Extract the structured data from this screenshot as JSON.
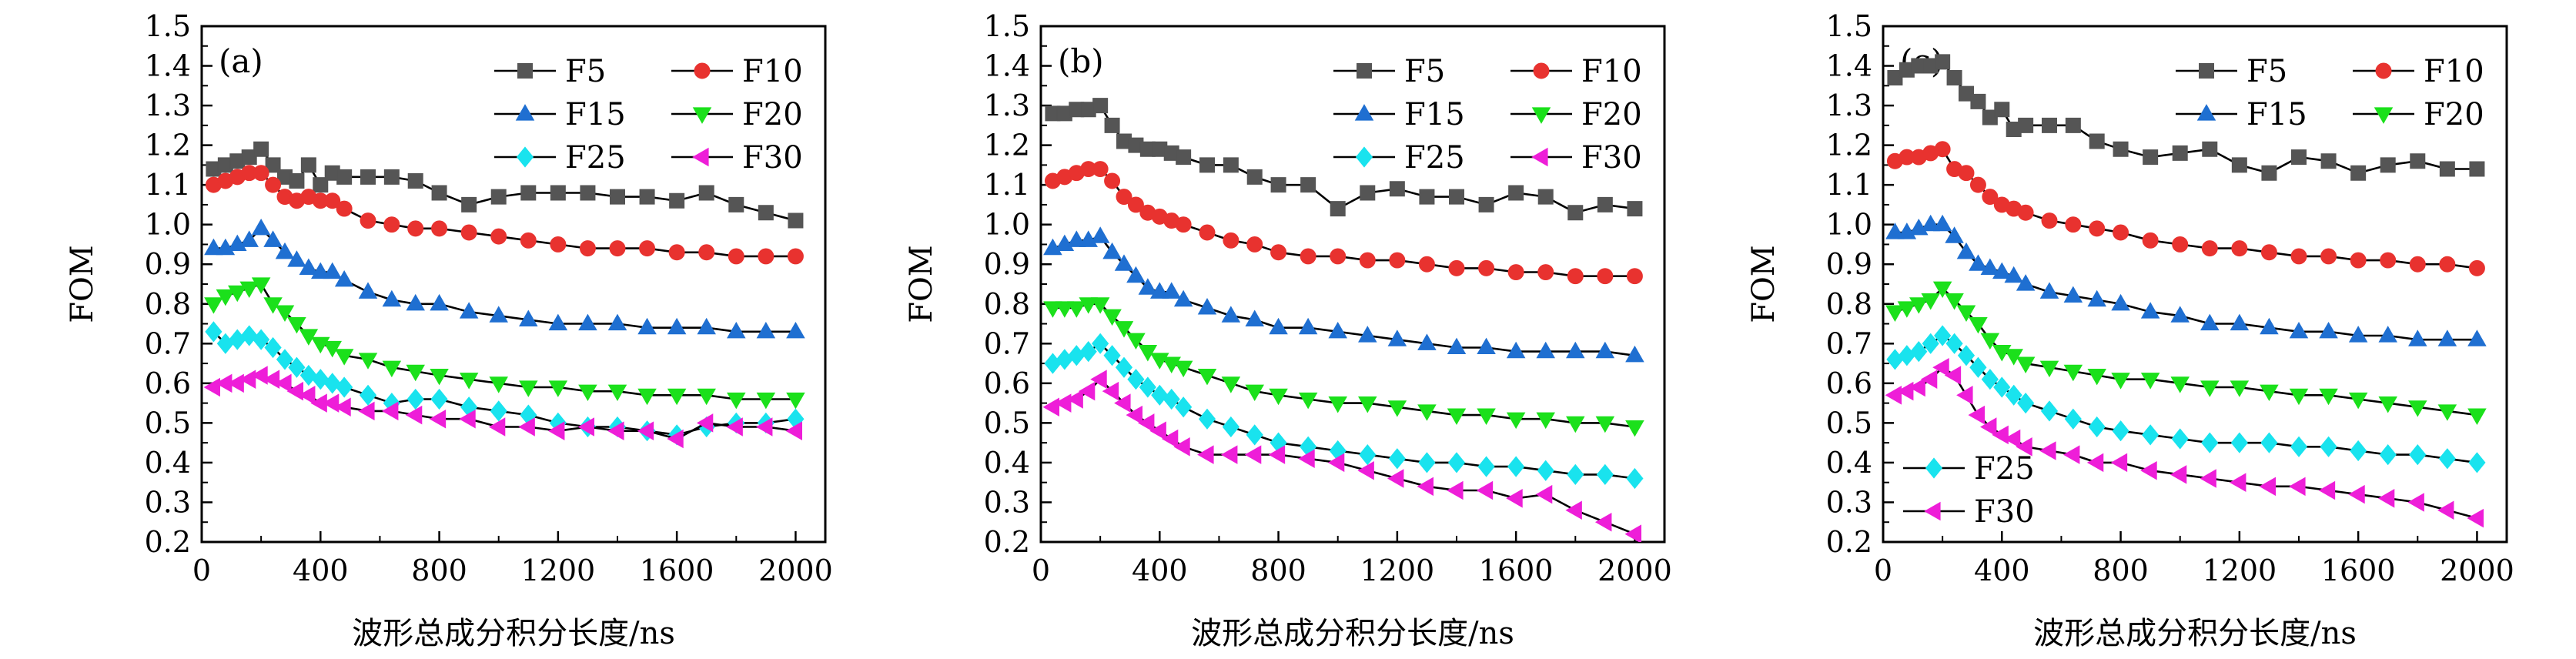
{
  "chart_data": [
    {
      "type": "line",
      "panel_label": "(a)",
      "xlabel": "波形总成分积分长度/ns",
      "ylabel": "FOM",
      "xlim": [
        0,
        2100
      ],
      "ylim": [
        0.2,
        1.5
      ],
      "xticks": [
        0,
        400,
        800,
        1200,
        1600,
        2000
      ],
      "yticks": [
        0.2,
        0.3,
        0.4,
        0.5,
        0.6,
        0.7,
        0.8,
        0.9,
        1.0,
        1.1,
        1.2,
        1.3,
        1.4,
        1.5
      ],
      "legend_placement": "top-right",
      "legend_rows": [
        [
          "F5",
          "F10"
        ],
        [
          "F15",
          "F20"
        ],
        [
          "F25",
          "F30"
        ]
      ],
      "x": [
        40,
        80,
        120,
        160,
        200,
        240,
        280,
        320,
        360,
        400,
        440,
        480,
        560,
        640,
        720,
        800,
        900,
        1000,
        1100,
        1200,
        1300,
        1400,
        1500,
        1600,
        1700,
        1800,
        1900,
        2000
      ],
      "series": [
        {
          "name": "F5",
          "values": [
            1.14,
            1.15,
            1.16,
            1.17,
            1.19,
            1.15,
            1.12,
            1.11,
            1.15,
            1.1,
            1.13,
            1.12,
            1.12,
            1.12,
            1.11,
            1.08,
            1.05,
            1.07,
            1.08,
            1.08,
            1.08,
            1.07,
            1.07,
            1.06,
            1.08,
            1.05,
            1.03,
            1.01
          ]
        },
        {
          "name": "F10",
          "values": [
            1.1,
            1.11,
            1.12,
            1.13,
            1.13,
            1.1,
            1.07,
            1.06,
            1.07,
            1.06,
            1.06,
            1.04,
            1.01,
            1.0,
            0.99,
            0.99,
            0.98,
            0.97,
            0.96,
            0.95,
            0.94,
            0.94,
            0.94,
            0.93,
            0.93,
            0.92,
            0.92,
            0.92
          ]
        },
        {
          "name": "F15",
          "values": [
            0.94,
            0.94,
            0.95,
            0.96,
            0.99,
            0.96,
            0.93,
            0.91,
            0.89,
            0.88,
            0.88,
            0.86,
            0.83,
            0.81,
            0.8,
            0.8,
            0.78,
            0.77,
            0.76,
            0.75,
            0.75,
            0.75,
            0.74,
            0.74,
            0.74,
            0.73,
            0.73,
            0.73
          ]
        },
        {
          "name": "F20",
          "values": [
            0.8,
            0.82,
            0.83,
            0.84,
            0.85,
            0.8,
            0.78,
            0.75,
            0.72,
            0.7,
            0.69,
            0.67,
            0.66,
            0.64,
            0.63,
            0.62,
            0.61,
            0.6,
            0.59,
            0.59,
            0.58,
            0.58,
            0.57,
            0.57,
            0.57,
            0.56,
            0.56,
            0.56
          ]
        },
        {
          "name": "F25",
          "values": [
            0.73,
            0.7,
            0.71,
            0.72,
            0.71,
            0.69,
            0.66,
            0.64,
            0.62,
            0.61,
            0.6,
            0.59,
            0.57,
            0.55,
            0.56,
            0.56,
            0.54,
            0.53,
            0.52,
            0.5,
            0.49,
            0.49,
            0.48,
            0.47,
            0.49,
            0.5,
            0.5,
            0.51
          ]
        },
        {
          "name": "F30",
          "values": [
            0.59,
            0.6,
            0.6,
            0.61,
            0.62,
            0.61,
            0.6,
            0.58,
            0.57,
            0.55,
            0.55,
            0.54,
            0.53,
            0.53,
            0.52,
            0.51,
            0.51,
            0.49,
            0.49,
            0.48,
            0.49,
            0.48,
            0.48,
            0.46,
            0.5,
            0.49,
            0.49,
            0.48
          ]
        }
      ]
    },
    {
      "type": "line",
      "panel_label": "(b)",
      "xlabel": "波形总成分积分长度/ns",
      "ylabel": "FOM",
      "xlim": [
        0,
        2100
      ],
      "ylim": [
        0.2,
        1.5
      ],
      "xticks": [
        0,
        400,
        800,
        1200,
        1600,
        2000
      ],
      "yticks": [
        0.2,
        0.3,
        0.4,
        0.5,
        0.6,
        0.7,
        0.8,
        0.9,
        1.0,
        1.1,
        1.2,
        1.3,
        1.4,
        1.5
      ],
      "legend_placement": "top-right",
      "legend_rows": [
        [
          "F5",
          "F10"
        ],
        [
          "F15",
          "F20"
        ],
        [
          "F25",
          "F30"
        ]
      ],
      "x": [
        40,
        80,
        120,
        160,
        200,
        240,
        280,
        320,
        360,
        400,
        440,
        480,
        560,
        640,
        720,
        800,
        900,
        1000,
        1100,
        1200,
        1300,
        1400,
        1500,
        1600,
        1700,
        1800,
        1900,
        2000
      ],
      "series": [
        {
          "name": "F5",
          "values": [
            1.28,
            1.28,
            1.29,
            1.29,
            1.3,
            1.25,
            1.21,
            1.2,
            1.19,
            1.19,
            1.18,
            1.17,
            1.15,
            1.15,
            1.12,
            1.1,
            1.1,
            1.04,
            1.08,
            1.09,
            1.07,
            1.07,
            1.05,
            1.08,
            1.07,
            1.03,
            1.05,
            1.04
          ]
        },
        {
          "name": "F10",
          "values": [
            1.11,
            1.12,
            1.13,
            1.14,
            1.14,
            1.11,
            1.07,
            1.05,
            1.03,
            1.02,
            1.01,
            1.0,
            0.98,
            0.96,
            0.95,
            0.93,
            0.92,
            0.92,
            0.91,
            0.91,
            0.9,
            0.89,
            0.89,
            0.88,
            0.88,
            0.87,
            0.87,
            0.87
          ]
        },
        {
          "name": "F15",
          "values": [
            0.94,
            0.95,
            0.96,
            0.96,
            0.97,
            0.93,
            0.9,
            0.87,
            0.84,
            0.83,
            0.83,
            0.81,
            0.79,
            0.77,
            0.76,
            0.74,
            0.74,
            0.73,
            0.72,
            0.71,
            0.7,
            0.69,
            0.69,
            0.68,
            0.68,
            0.68,
            0.68,
            0.67
          ]
        },
        {
          "name": "F20",
          "values": [
            0.79,
            0.79,
            0.79,
            0.8,
            0.8,
            0.77,
            0.74,
            0.71,
            0.68,
            0.66,
            0.65,
            0.64,
            0.62,
            0.6,
            0.58,
            0.57,
            0.56,
            0.55,
            0.55,
            0.54,
            0.53,
            0.52,
            0.52,
            0.51,
            0.51,
            0.5,
            0.5,
            0.49
          ]
        },
        {
          "name": "F25",
          "values": [
            0.65,
            0.66,
            0.67,
            0.68,
            0.7,
            0.67,
            0.64,
            0.61,
            0.59,
            0.57,
            0.56,
            0.54,
            0.51,
            0.49,
            0.47,
            0.45,
            0.44,
            0.43,
            0.42,
            0.41,
            0.4,
            0.4,
            0.39,
            0.39,
            0.38,
            0.37,
            0.37,
            0.36
          ]
        },
        {
          "name": "F30",
          "values": [
            0.54,
            0.55,
            0.56,
            0.58,
            0.61,
            0.58,
            0.55,
            0.52,
            0.5,
            0.48,
            0.46,
            0.44,
            0.42,
            0.42,
            0.42,
            0.42,
            0.41,
            0.4,
            0.38,
            0.36,
            0.34,
            0.33,
            0.33,
            0.31,
            0.32,
            0.28,
            0.25,
            0.22
          ]
        }
      ]
    },
    {
      "type": "line",
      "panel_label": "(c)",
      "xlabel": "波形总成分积分长度/ns",
      "ylabel": "FOM",
      "xlim": [
        0,
        2100
      ],
      "ylim": [
        0.2,
        1.5
      ],
      "xticks": [
        0,
        400,
        800,
        1200,
        1600,
        2000
      ],
      "yticks": [
        0.2,
        0.3,
        0.4,
        0.5,
        0.6,
        0.7,
        0.8,
        0.9,
        1.0,
        1.1,
        1.2,
        1.3,
        1.4,
        1.5
      ],
      "legend_placement": "top-right (F5–F20), bottom-left (F25, F30)",
      "legend_rows": [
        [
          "F5",
          "F10"
        ],
        [
          "F15",
          "F20"
        ]
      ],
      "legend_rows_lower": [
        [
          "F25"
        ],
        [
          "F30"
        ]
      ],
      "x": [
        40,
        80,
        120,
        160,
        200,
        240,
        280,
        320,
        360,
        400,
        440,
        480,
        560,
        640,
        720,
        800,
        900,
        1000,
        1100,
        1200,
        1300,
        1400,
        1500,
        1600,
        1700,
        1800,
        1900,
        2000
      ],
      "series": [
        {
          "name": "F5",
          "values": [
            1.37,
            1.39,
            1.4,
            1.4,
            1.41,
            1.37,
            1.33,
            1.31,
            1.27,
            1.29,
            1.24,
            1.25,
            1.25,
            1.25,
            1.21,
            1.19,
            1.17,
            1.18,
            1.19,
            1.15,
            1.13,
            1.17,
            1.16,
            1.13,
            1.15,
            1.16,
            1.14,
            1.14
          ]
        },
        {
          "name": "F10",
          "values": [
            1.16,
            1.17,
            1.17,
            1.18,
            1.19,
            1.14,
            1.13,
            1.1,
            1.07,
            1.05,
            1.04,
            1.03,
            1.01,
            1.0,
            0.99,
            0.98,
            0.96,
            0.95,
            0.94,
            0.94,
            0.93,
            0.92,
            0.92,
            0.91,
            0.91,
            0.9,
            0.9,
            0.89
          ]
        },
        {
          "name": "F15",
          "values": [
            0.98,
            0.98,
            0.99,
            1.0,
            1.0,
            0.97,
            0.93,
            0.9,
            0.89,
            0.88,
            0.87,
            0.85,
            0.83,
            0.82,
            0.81,
            0.8,
            0.78,
            0.77,
            0.75,
            0.75,
            0.74,
            0.73,
            0.73,
            0.72,
            0.72,
            0.71,
            0.71,
            0.71
          ]
        },
        {
          "name": "F20",
          "values": [
            0.78,
            0.79,
            0.8,
            0.81,
            0.84,
            0.81,
            0.78,
            0.75,
            0.71,
            0.68,
            0.67,
            0.65,
            0.64,
            0.63,
            0.62,
            0.61,
            0.61,
            0.6,
            0.59,
            0.59,
            0.58,
            0.57,
            0.57,
            0.56,
            0.55,
            0.54,
            0.53,
            0.52
          ]
        },
        {
          "name": "F25",
          "values": [
            0.66,
            0.67,
            0.68,
            0.7,
            0.72,
            0.7,
            0.67,
            0.64,
            0.61,
            0.59,
            0.57,
            0.55,
            0.53,
            0.51,
            0.49,
            0.48,
            0.47,
            0.46,
            0.45,
            0.45,
            0.45,
            0.44,
            0.44,
            0.43,
            0.42,
            0.42,
            0.41,
            0.4
          ]
        },
        {
          "name": "F30",
          "values": [
            0.57,
            0.58,
            0.59,
            0.61,
            0.64,
            0.62,
            0.57,
            0.52,
            0.49,
            0.47,
            0.46,
            0.44,
            0.43,
            0.42,
            0.4,
            0.4,
            0.38,
            0.37,
            0.36,
            0.35,
            0.34,
            0.34,
            0.33,
            0.32,
            0.31,
            0.3,
            0.28,
            0.26
          ]
        }
      ]
    }
  ],
  "style": {
    "F5": {
      "color": "#555555",
      "marker": "square"
    },
    "F10": {
      "color": "#e8322f",
      "marker": "circle"
    },
    "F15": {
      "color": "#1f6fd1",
      "marker": "triangle-up"
    },
    "F20": {
      "color": "#1be01b",
      "marker": "triangle-down"
    },
    "F25": {
      "color": "#19e3ee",
      "marker": "diamond"
    },
    "F30": {
      "color": "#ee1ed8",
      "marker": "triangle-left"
    },
    "line_color": "#000000",
    "axis_color": "#000000"
  }
}
